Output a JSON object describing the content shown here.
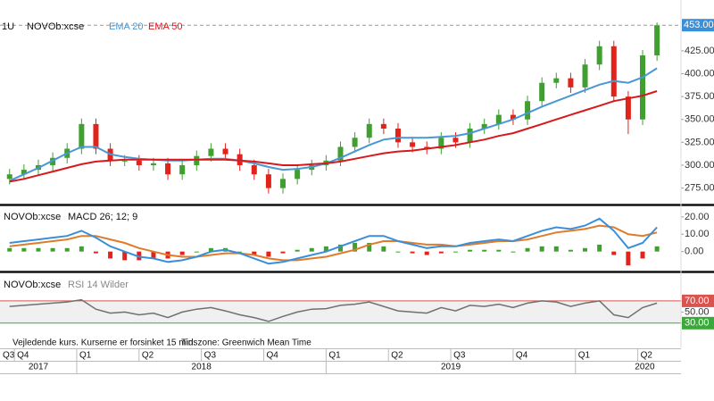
{
  "chart_data": [
    {
      "type": "candlestick",
      "interval": "1U",
      "symbol": "NOVOb:xcse",
      "x": [
        12,
        15,
        18,
        21,
        24,
        27,
        30,
        33,
        36,
        39,
        42,
        45,
        48,
        51,
        54,
        57,
        60,
        63,
        66,
        69,
        72,
        75,
        78,
        81,
        84,
        87,
        90,
        93,
        96,
        99,
        102,
        105,
        108,
        111,
        114,
        117,
        120,
        123,
        126,
        129,
        132,
        135,
        138,
        141,
        144,
        147
      ],
      "open": [
        285,
        290,
        295,
        300,
        308,
        318,
        345,
        318,
        305,
        305,
        300,
        302,
        290,
        300,
        310,
        318,
        312,
        300,
        290,
        275,
        285,
        295,
        300,
        305,
        320,
        330,
        345,
        340,
        325,
        320,
        318,
        330,
        325,
        340,
        345,
        355,
        350,
        370,
        390,
        395,
        385,
        410,
        430,
        375,
        350,
        420
      ],
      "high": [
        296,
        301,
        306,
        314,
        324,
        351,
        351,
        324,
        311,
        311,
        308,
        308,
        306,
        316,
        324,
        324,
        318,
        306,
        296,
        291,
        301,
        306,
        311,
        326,
        336,
        351,
        351,
        346,
        331,
        326,
        336,
        336,
        346,
        351,
        361,
        361,
        376,
        396,
        401,
        401,
        416,
        436,
        436,
        381,
        426,
        456
      ],
      "low": [
        279,
        284,
        289,
        294,
        302,
        312,
        312,
        299,
        299,
        294,
        294,
        284,
        284,
        294,
        304,
        306,
        294,
        284,
        269,
        269,
        279,
        289,
        294,
        299,
        314,
        324,
        334,
        319,
        314,
        312,
        312,
        319,
        319,
        334,
        339,
        344,
        344,
        364,
        384,
        379,
        379,
        404,
        369,
        334,
        344,
        414
      ],
      "close": [
        290,
        295,
        300,
        308,
        318,
        345,
        318,
        305,
        305,
        300,
        302,
        290,
        300,
        310,
        318,
        312,
        300,
        290,
        275,
        285,
        295,
        300,
        305,
        320,
        330,
        345,
        340,
        325,
        320,
        318,
        330,
        325,
        340,
        345,
        355,
        350,
        370,
        390,
        395,
        385,
        410,
        430,
        375,
        350,
        420,
        453
      ],
      "up_color": "#3f9f2f",
      "down_color": "#e2231a",
      "series": [
        {
          "name": "EMA 20",
          "color": "#4a98d3",
          "values": [
            283,
            290,
            297,
            305,
            313,
            320,
            320,
            312,
            309,
            307,
            306,
            305,
            305,
            306,
            307,
            307,
            305,
            302,
            298,
            295,
            296,
            298,
            302,
            308,
            315,
            322,
            328,
            330,
            330,
            330,
            331,
            332,
            335,
            340,
            345,
            350,
            357,
            364,
            370,
            376,
            382,
            388,
            392,
            390,
            396,
            406
          ]
        },
        {
          "name": "EMA 50",
          "color": "#d7191c",
          "values": [
            282,
            285,
            289,
            293,
            297,
            301,
            304,
            305,
            306,
            306,
            306,
            306,
            306,
            306,
            306,
            306,
            305,
            304,
            302,
            300,
            300,
            301,
            302,
            304,
            307,
            310,
            313,
            315,
            316,
            318,
            320,
            322,
            325,
            328,
            332,
            335,
            340,
            345,
            350,
            355,
            360,
            365,
            370,
            373,
            376,
            381
          ]
        }
      ],
      "ylim": [
        258,
        461
      ],
      "yticks": [
        {
          "value": 275,
          "label": "275.00"
        },
        {
          "value": 300,
          "label": "300.00"
        },
        {
          "value": 325,
          "label": "325.00"
        },
        {
          "value": 350,
          "label": "350.00"
        },
        {
          "value": 375,
          "label": "375.00"
        },
        {
          "value": 400,
          "label": "400.00"
        },
        {
          "value": 425,
          "label": "425.00"
        }
      ],
      "last_price": {
        "value": 453,
        "label": "453.00"
      },
      "last_price_color": "#3b8fd9",
      "xlim": [
        10,
        152
      ],
      "xticks": [
        {
          "value": 0,
          "label": "Q3"
        },
        {
          "value": 13,
          "label": "Q4"
        },
        {
          "value": 26,
          "label": "Q1"
        },
        {
          "value": 39,
          "label": "Q2"
        },
        {
          "value": 52,
          "label": "Q3"
        },
        {
          "value": 65,
          "label": "Q4"
        },
        {
          "value": 78,
          "label": "Q1"
        },
        {
          "value": 91,
          "label": "Q2"
        },
        {
          "value": 104,
          "label": "Q3"
        },
        {
          "value": 117,
          "label": "Q4"
        },
        {
          "value": 130,
          "label": "Q1"
        },
        {
          "value": 143,
          "label": "Q2"
        }
      ],
      "year_ticks": [
        {
          "value": 0,
          "label": "2017"
        },
        {
          "value": 26,
          "label": "2018"
        },
        {
          "value": 78,
          "label": "2019"
        },
        {
          "value": 130,
          "label": "2020"
        }
      ]
    },
    {
      "type": "macd",
      "symbol": "NOVOb:xcse",
      "title": "MACD 26; 12; 9",
      "macd": {
        "color": "#3b8fd9",
        "values": [
          5,
          6,
          7,
          8,
          9,
          12,
          8,
          3,
          0,
          -3,
          -4,
          -6,
          -5,
          -3,
          0,
          1,
          -1,
          -4,
          -7,
          -6,
          -4,
          -2,
          0,
          3,
          6,
          9,
          9,
          6,
          4,
          2,
          3,
          3,
          5,
          6,
          7,
          6,
          9,
          12,
          14,
          13,
          15,
          19,
          12,
          2,
          5,
          14
        ]
      },
      "signal": {
        "color": "#e07b2a",
        "values": [
          3,
          4,
          5,
          6,
          7,
          9,
          9,
          7,
          5,
          2,
          0,
          -2,
          -3,
          -3,
          -2,
          -1,
          -1,
          -2,
          -4,
          -5,
          -5,
          -4,
          -3,
          -1,
          1,
          4,
          6,
          6,
          5,
          4,
          4,
          3,
          4,
          5,
          6,
          6,
          7,
          9,
          11,
          12,
          13,
          15,
          14,
          10,
          9,
          11
        ]
      },
      "histogram": {
        "up_color": "#3f9f2f",
        "down_color": "#e2231a",
        "values": [
          2,
          2,
          2,
          2,
          2,
          3,
          -1,
          -4,
          -5,
          -5,
          -4,
          -4,
          -2,
          0,
          2,
          2,
          0,
          -2,
          -3,
          -1,
          1,
          2,
          3,
          4,
          5,
          5,
          3,
          0,
          -1,
          -2,
          -1,
          0,
          1,
          1,
          1,
          0,
          2,
          3,
          3,
          1,
          2,
          4,
          -2,
          -8,
          -4,
          3
        ]
      },
      "ylim": [
        -11,
        25.6
      ],
      "yticks": [
        {
          "value": 0,
          "label": "0.00"
        },
        {
          "value": 10,
          "label": "10.00"
        },
        {
          "value": 20,
          "label": "20.00"
        }
      ]
    },
    {
      "type": "rsi",
      "symbol": "NOVOb:xcse",
      "title": "RSI 14 Wilder",
      "color": "#707070",
      "values": [
        60,
        62,
        64,
        66,
        68,
        72,
        55,
        48,
        50,
        45,
        48,
        40,
        50,
        55,
        58,
        52,
        45,
        40,
        33,
        42,
        50,
        55,
        56,
        62,
        64,
        68,
        60,
        52,
        50,
        48,
        58,
        52,
        62,
        60,
        64,
        58,
        66,
        70,
        68,
        60,
        66,
        70,
        45,
        40,
        58,
        66
      ],
      "ylim": [
        4,
        118
      ],
      "yticks": [
        {
          "value": 30,
          "label": "30.00"
        },
        {
          "value": 50,
          "label": "50.00"
        },
        {
          "value": 70,
          "label": "70.00"
        }
      ],
      "tick_box_colors": [
        "#3aa83a",
        null,
        "#d9534f"
      ]
    }
  ],
  "footer": {
    "delay": "Vejledende kurs. Kurserne er forsinket 15 min.",
    "timezone": "Tidszone: Greenwich Mean Time"
  }
}
